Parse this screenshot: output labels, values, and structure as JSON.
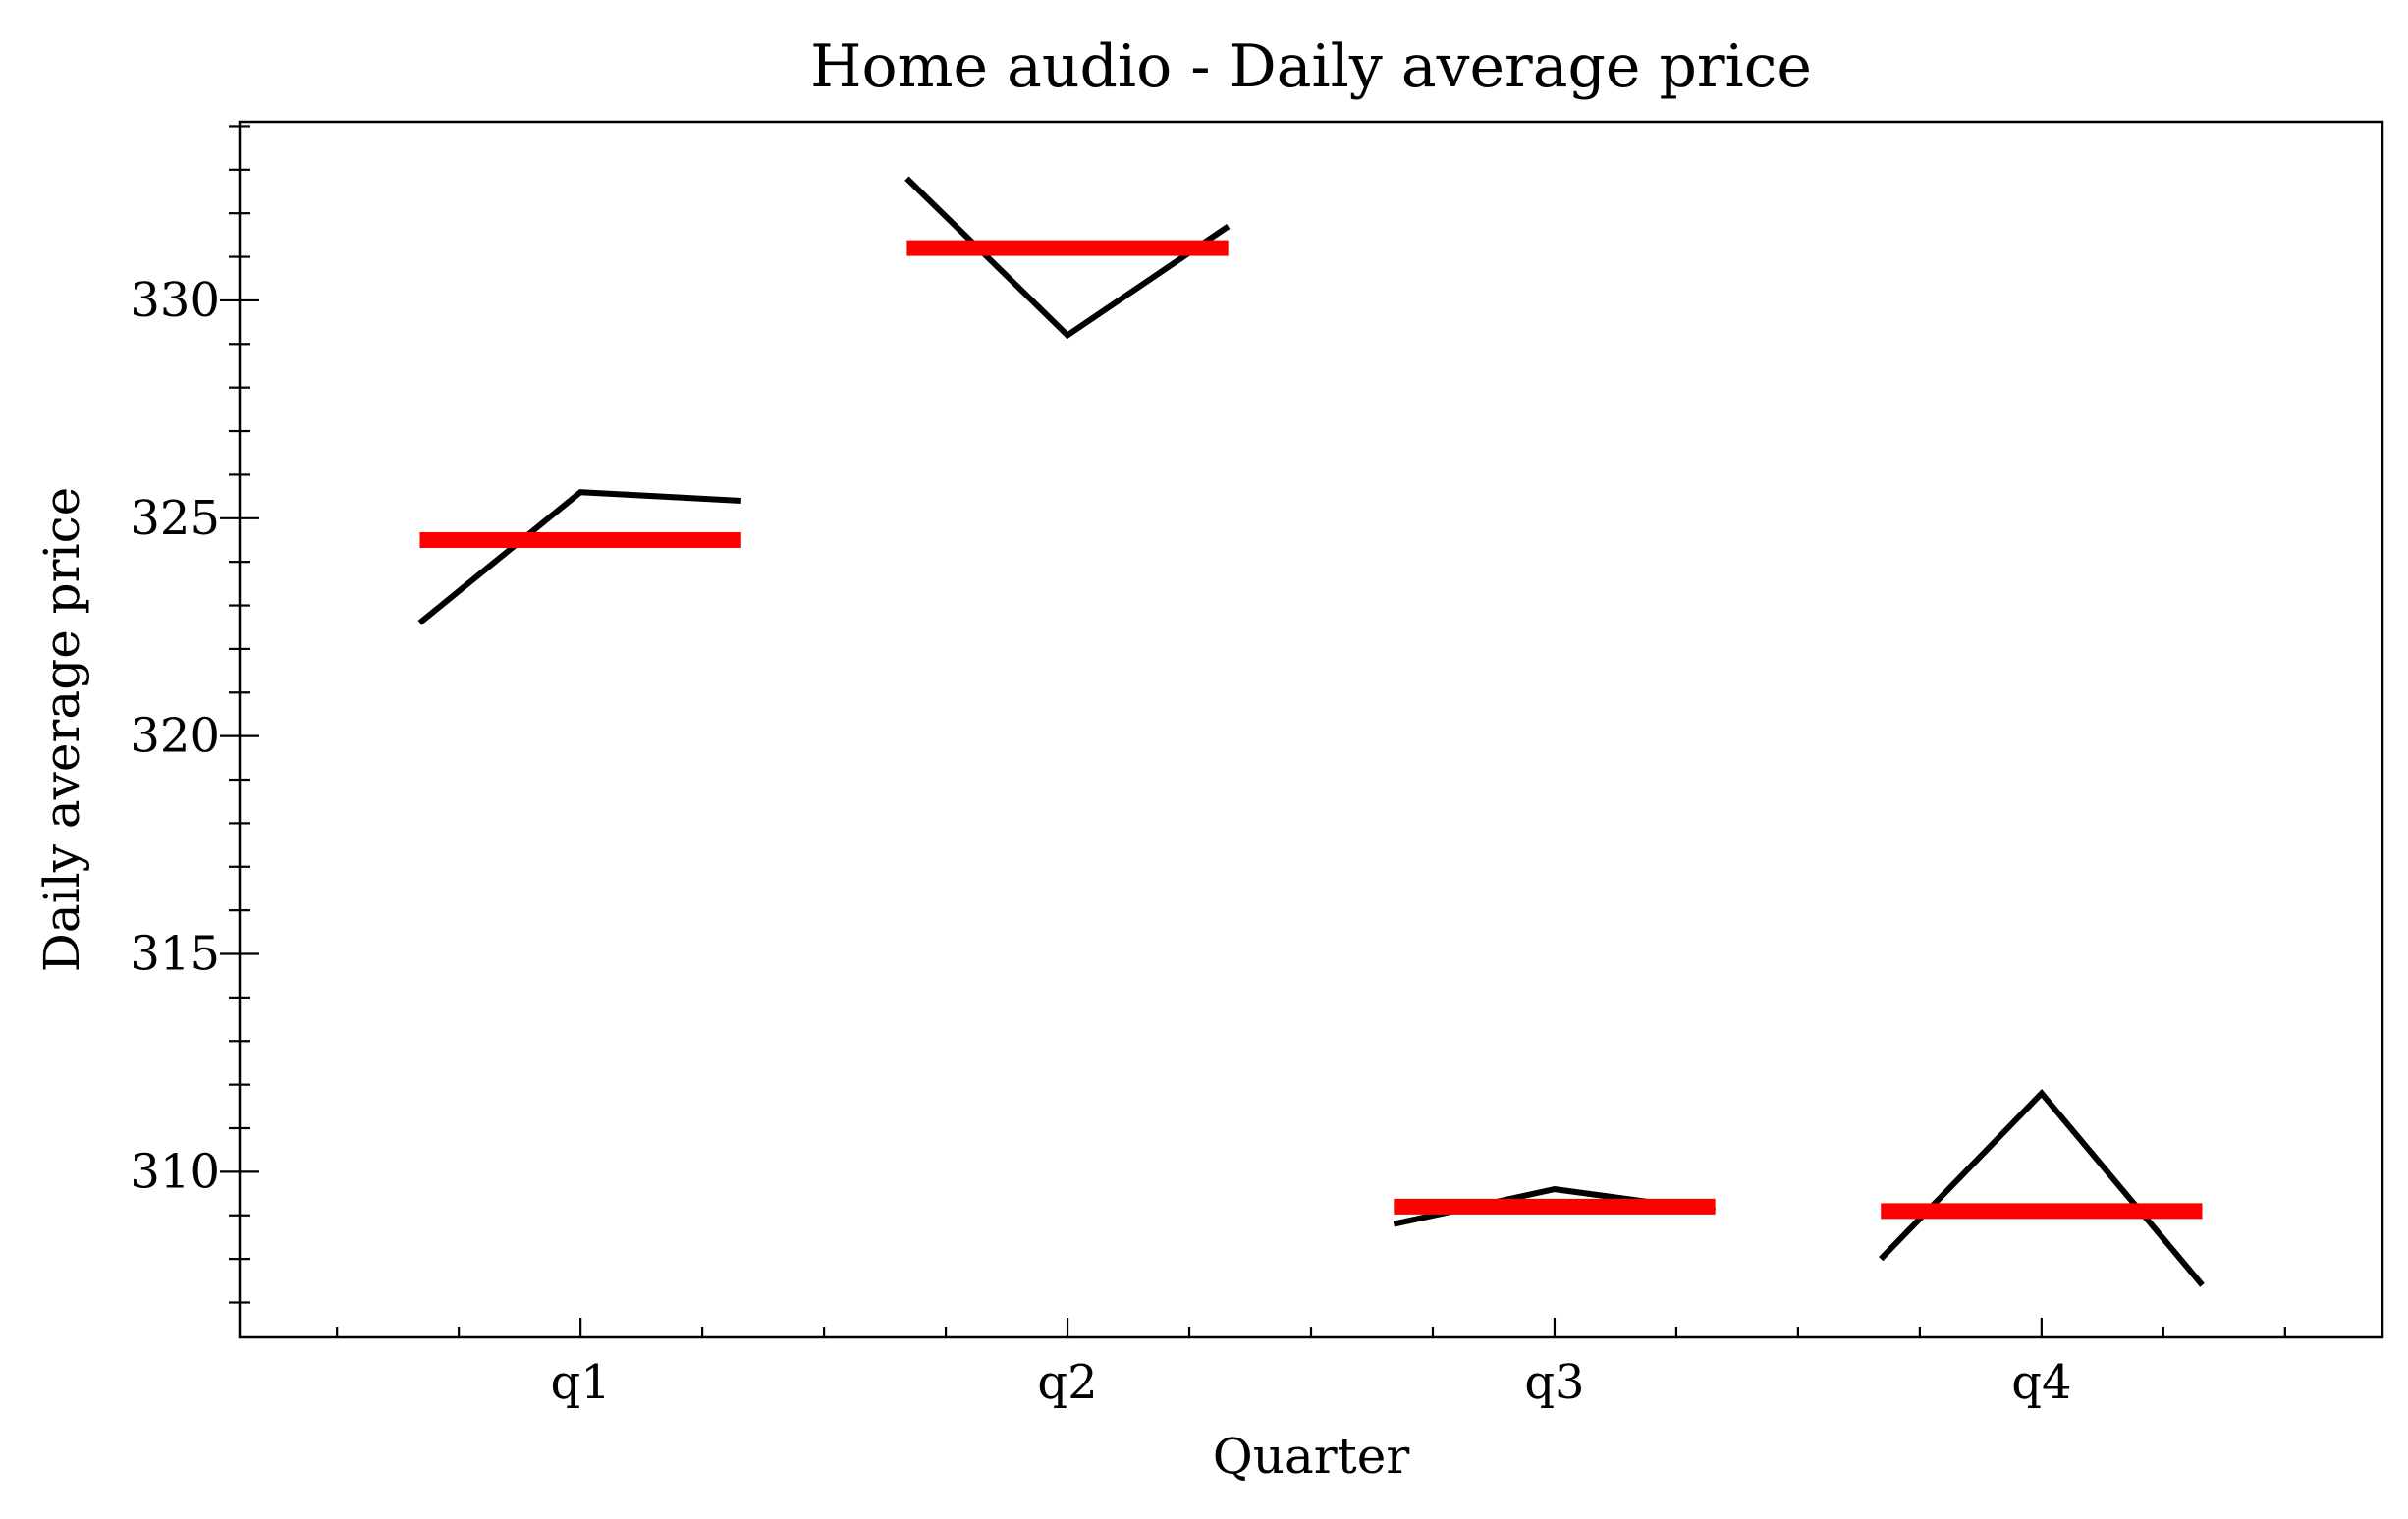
{
  "chart_data": {
    "type": "line",
    "title": "Home audio - Daily average price",
    "xlabel": "Quarter",
    "ylabel": "Daily average price",
    "categories": [
      "q1",
      "q2",
      "q3",
      "q4"
    ],
    "ylim": [
      306.2,
      334.1
    ],
    "yticks": [
      310,
      315,
      320,
      325,
      330
    ],
    "grid": false,
    "line_color": "#000000",
    "mean_color": "#ff0000",
    "groups": [
      {
        "category": "q1",
        "points": [
          322.6,
          325.6,
          325.4
        ],
        "mean": 324.5
      },
      {
        "category": "q2",
        "points": [
          332.8,
          329.2,
          331.7
        ],
        "mean": 331.2
      },
      {
        "category": "q3",
        "points": [
          308.8,
          309.6,
          309.1
        ],
        "mean": 309.2
      },
      {
        "category": "q4",
        "points": [
          308.0,
          311.8,
          307.4
        ],
        "mean": 309.1
      }
    ]
  }
}
